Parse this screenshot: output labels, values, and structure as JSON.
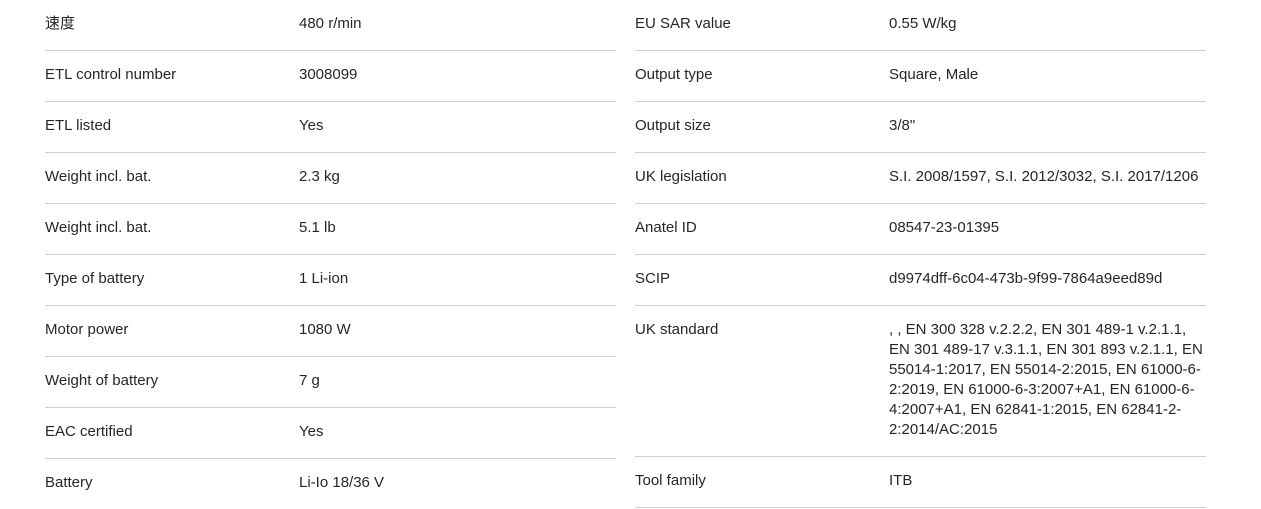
{
  "colors": {
    "background": "#ffffff",
    "text": "#262626",
    "divider": "#cfcfcf"
  },
  "spec": {
    "left": {
      "rows": [
        {
          "label": "速度",
          "value": "480 r/min"
        },
        {
          "label": "ETL control number",
          "value": "3008099"
        },
        {
          "label": "ETL listed",
          "value": "Yes"
        },
        {
          "label": "Weight incl. bat.",
          "value": "2.3 kg"
        },
        {
          "label": "Weight incl. bat.",
          "value": "5.1 lb"
        },
        {
          "label": "Type of battery",
          "value": "1 Li-ion"
        },
        {
          "label": "Motor power",
          "value": "1080 W"
        },
        {
          "label": "Weight of battery",
          "value": "7 g"
        },
        {
          "label": "EAC certified",
          "value": "Yes"
        },
        {
          "label": "Battery",
          "value": "Li-Io 18/36 V"
        }
      ]
    },
    "right": {
      "rows": [
        {
          "label": "EU SAR value",
          "value": "0.55 W/kg"
        },
        {
          "label": "Output type",
          "value": "Square, Male"
        },
        {
          "label": "Output size",
          "value": "3/8\""
        },
        {
          "label": "UK legislation",
          "value": "S.I. 2008/1597, S.I. 2012/3032, S.I. 2017/1206"
        },
        {
          "label": "Anatel ID",
          "value": "08547-23-01395"
        },
        {
          "label": "SCIP",
          "value": "d9974dff-6c04-473b-9f99-7864a9eed89d"
        },
        {
          "label": "UK standard",
          "value": ", , EN 300 328 v.2.2.2, EN 301 489-1 v.2.1.1, EN 301 489-17 v.3.1.1, EN 301 893 v.2.1.1, EN 55014-1:2017, EN 55014-2:2015, EN 61000-6-2:2019, EN 61000-6-3:2007+A1, EN 61000-6-4:2007+A1, EN 62841-1:2015, EN 62841-2-2:2014/AC:2015"
        },
        {
          "label": "Tool family",
          "value": "ITB"
        }
      ]
    }
  }
}
